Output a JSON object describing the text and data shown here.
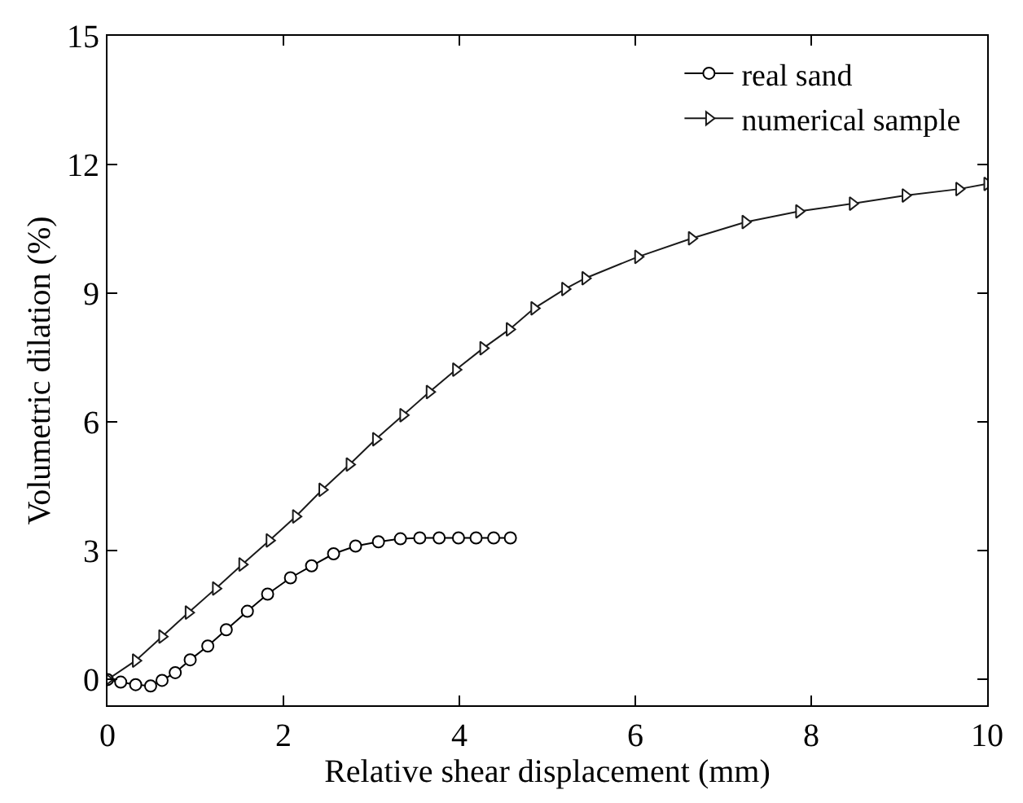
{
  "chart_data": {
    "type": "line",
    "xlabel": "Relative shear displacement (mm)",
    "ylabel": "Volumetric dilation (%)",
    "xlim": [
      0,
      10
    ],
    "xticks": [
      0,
      2,
      4,
      6,
      8,
      10
    ],
    "ylim": [
      -0.6,
      15
    ],
    "yticks": [
      0,
      3,
      6,
      9,
      12,
      15
    ],
    "legend": "top right",
    "line_style": "solid",
    "series": [
      {
        "name": "real sand",
        "color": "#000000",
        "marker": "circle",
        "x": [
          0,
          0.15,
          0.32,
          0.49,
          0.62,
          0.77,
          0.94,
          1.14,
          1.35,
          1.59,
          1.82,
          2.08,
          2.32,
          2.57,
          2.82,
          3.08,
          3.33,
          3.55,
          3.77,
          3.99,
          4.19,
          4.39,
          4.58
        ],
        "values": [
          0,
          -0.06,
          -0.12,
          -0.15,
          -0.02,
          0.16,
          0.46,
          0.78,
          1.16,
          1.59,
          1.99,
          2.37,
          2.65,
          2.93,
          3.11,
          3.21,
          3.28,
          3.3,
          3.3,
          3.3,
          3.3,
          3.3,
          3.3
        ]
      },
      {
        "name": "numerical sample",
        "color": "#1a1a1a",
        "marker": "triangle",
        "x": [
          0,
          0.32,
          0.62,
          0.92,
          1.23,
          1.53,
          1.84,
          2.14,
          2.44,
          2.75,
          3.05,
          3.36,
          3.66,
          3.96,
          4.27,
          4.57,
          4.85,
          5.2,
          5.43,
          6.03,
          6.64,
          7.25,
          7.86,
          8.47,
          9.07,
          9.68,
          10.0
        ],
        "values": [
          0,
          0.44,
          1.0,
          1.56,
          2.12,
          2.68,
          3.24,
          3.8,
          4.42,
          5.01,
          5.6,
          6.16,
          6.7,
          7.22,
          7.72,
          8.16,
          8.65,
          9.1,
          9.35,
          9.85,
          10.28,
          10.66,
          10.91,
          11.09,
          11.28,
          11.43,
          11.55
        ]
      }
    ]
  }
}
